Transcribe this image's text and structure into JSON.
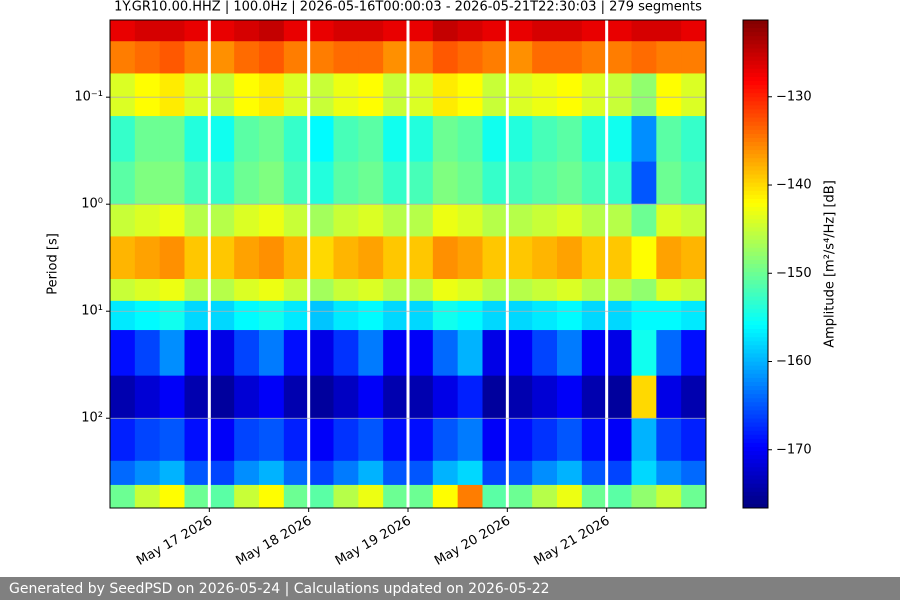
{
  "chart_data": {
    "type": "heatmap",
    "title": "1Y.GR10.00.HHZ | 100.0Hz | 2026-05-16T00:00:03 - 2026-05-21T22:30:03 | 279 segments",
    "y_label": "Period [s]",
    "colorbar_label": "Amplitude [m²/s⁴/Hz] [dB]",
    "y_log": true,
    "y_inverted": true,
    "colormap": "jet",
    "xlim": [
      "2026-05-16T00:00",
      "2026-05-22T00:00"
    ],
    "xticks": [
      {
        "value": "2026-05-17T00:00",
        "label": "May 17 2026"
      },
      {
        "value": "2026-05-18T00:00",
        "label": "May 18 2026"
      },
      {
        "value": "2026-05-19T00:00",
        "label": "May 19 2026"
      },
      {
        "value": "2026-05-20T00:00",
        "label": "May 20 2026"
      },
      {
        "value": "2026-05-21T00:00",
        "label": "May 21 2026"
      }
    ],
    "ylim": [
      0.019,
      690
    ],
    "yticks": [
      {
        "value": 0.1,
        "label": "10⁻¹"
      },
      {
        "value": 1,
        "label": "10⁰"
      },
      {
        "value": 10,
        "label": "10¹"
      },
      {
        "value": 100,
        "label": "10²"
      }
    ],
    "grid": true,
    "clim": [
      -176.6,
      -121.3
    ],
    "cticks": [
      {
        "value": -130,
        "label": "−130"
      },
      {
        "value": -140,
        "label": "−140"
      },
      {
        "value": -150,
        "label": "−150"
      },
      {
        "value": -160,
        "label": "−160"
      },
      {
        "value": -170,
        "label": "−170"
      }
    ],
    "x_gaps": [
      "2026-05-17T00:00",
      "2026-05-18T00:00",
      "2026-05-19T00:00",
      "2026-05-20T00:00",
      "2026-05-21T00:00"
    ],
    "x_edges": [
      "2026-05-16T00:00",
      "2026-05-16T06:00",
      "2026-05-16T12:00",
      "2026-05-16T18:00",
      "2026-05-17T00:00",
      "2026-05-17T06:00",
      "2026-05-17T12:00",
      "2026-05-17T18:00",
      "2026-05-18T00:00",
      "2026-05-18T06:00",
      "2026-05-18T12:00",
      "2026-05-18T18:00",
      "2026-05-19T00:00",
      "2026-05-19T06:00",
      "2026-05-19T12:00",
      "2026-05-19T18:00",
      "2026-05-20T00:00",
      "2026-05-20T06:00",
      "2026-05-20T12:00",
      "2026-05-20T18:00",
      "2026-05-21T00:00",
      "2026-05-21T06:00",
      "2026-05-21T12:00",
      "2026-05-21T18:00",
      "2026-05-22T00:00"
    ],
    "y_edges": [
      0.019,
      0.03,
      0.06,
      0.15,
      0.4,
      1,
      2,
      5,
      8,
      15,
      40,
      100,
      250,
      420,
      690
    ],
    "z": [
      [
        -127,
        -126,
        -126,
        -127,
        -127,
        -126,
        -125,
        -127,
        -127,
        -126,
        -126,
        -127,
        -127,
        -125,
        -126,
        -127,
        -127,
        -126,
        -126,
        -127,
        -127,
        -126,
        -126,
        -127
      ],
      [
        -135,
        -134,
        -133,
        -135,
        -136,
        -134,
        -133,
        -135,
        -135,
        -134,
        -134,
        -136,
        -135,
        -133,
        -134,
        -135,
        -136,
        -134,
        -134,
        -135,
        -135,
        -134,
        -135,
        -135
      ],
      [
        -144,
        -142,
        -141,
        -144,
        -145,
        -142,
        -141,
        -144,
        -145,
        -143,
        -142,
        -145,
        -144,
        -141,
        -142,
        -145,
        -144,
        -143,
        -142,
        -144,
        -145,
        -148,
        -142,
        -144
      ],
      [
        -153,
        -150,
        -150,
        -154,
        -155,
        -151,
        -150,
        -153,
        -156,
        -152,
        -151,
        -155,
        -154,
        -150,
        -151,
        -155,
        -154,
        -152,
        -151,
        -154,
        -155,
        -162,
        -151,
        -153
      ],
      [
        -151,
        -149,
        -149,
        -152,
        -153,
        -150,
        -149,
        -152,
        -154,
        -151,
        -150,
        -153,
        -152,
        -149,
        -150,
        -153,
        -152,
        -151,
        -150,
        -152,
        -153,
        -165,
        -150,
        -152
      ],
      [
        -145,
        -144,
        -143,
        -146,
        -146,
        -144,
        -143,
        -145,
        -147,
        -145,
        -144,
        -146,
        -146,
        -143,
        -144,
        -146,
        -146,
        -145,
        -144,
        -146,
        -146,
        -150,
        -144,
        -145
      ],
      [
        -138,
        -137,
        -136,
        -139,
        -139,
        -137,
        -136,
        -138,
        -140,
        -138,
        -137,
        -139,
        -139,
        -136,
        -137,
        -139,
        -139,
        -138,
        -137,
        -139,
        -139,
        -142,
        -137,
        -138
      ],
      [
        -145,
        -144,
        -143,
        -146,
        -146,
        -144,
        -143,
        -145,
        -147,
        -145,
        -144,
        -146,
        -146,
        -143,
        -144,
        -146,
        -146,
        -145,
        -144,
        -146,
        -146,
        -148,
        -144,
        -145
      ],
      [
        -157,
        -156,
        -155,
        -158,
        -158,
        -156,
        -155,
        -157,
        -159,
        -157,
        -156,
        -158,
        -158,
        -155,
        -156,
        -158,
        -158,
        -157,
        -156,
        -158,
        -158,
        -156,
        -156,
        -157
      ],
      [
        -169,
        -166,
        -162,
        -170,
        -171,
        -166,
        -163,
        -169,
        -171,
        -167,
        -163,
        -170,
        -170,
        -164,
        -160,
        -171,
        -170,
        -166,
        -163,
        -170,
        -171,
        -155,
        -164,
        -169
      ],
      [
        -174,
        -172,
        -170,
        -174,
        -175,
        -172,
        -170,
        -174,
        -175,
        -173,
        -170,
        -174,
        -174,
        -171,
        -168,
        -175,
        -174,
        -172,
        -170,
        -174,
        -175,
        -140,
        -171,
        -174
      ],
      [
        -168,
        -166,
        -165,
        -169,
        -170,
        -166,
        -165,
        -168,
        -170,
        -167,
        -165,
        -169,
        -169,
        -165,
        -163,
        -170,
        -169,
        -167,
        -165,
        -169,
        -170,
        -160,
        -166,
        -168
      ],
      [
        -164,
        -162,
        -160,
        -165,
        -166,
        -162,
        -160,
        -164,
        -166,
        -163,
        -160,
        -165,
        -165,
        -160,
        -158,
        -166,
        -165,
        -162,
        -160,
        -165,
        -166,
        -158,
        -162,
        -164
      ],
      [
        -150,
        -145,
        -142,
        -150,
        -151,
        -145,
        -142,
        -150,
        -151,
        -146,
        -143,
        -150,
        -150,
        -142,
        -135,
        -151,
        -150,
        -146,
        -143,
        -150,
        -151,
        -148,
        -145,
        -150
      ]
    ]
  },
  "footer": "Generated by SeedPSD on 2026-05-24 | Calculations updated on 2026-05-22"
}
